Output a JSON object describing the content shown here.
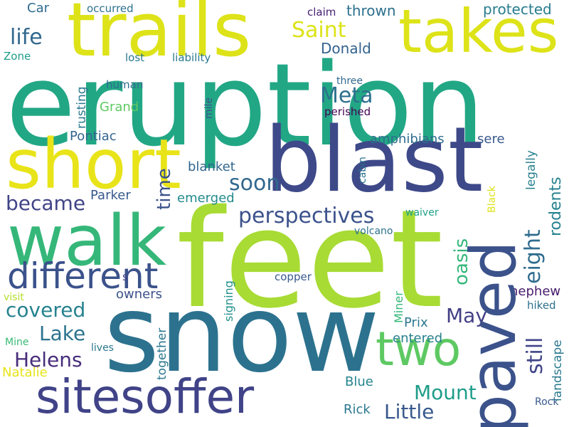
{
  "words": {
    "eruption": "eruption",
    "feet": "feet",
    "snow": "snow",
    "blast": "blast",
    "trails": "trails",
    "takes": "takes",
    "short": "short",
    "walk": "walk",
    "paved": "paved",
    "sitesoffer": "sitesoffer",
    "two": "two",
    "different": "different",
    "perspectives": "perspectives",
    "became": "became",
    "soon": "soon",
    "meta": "Meta",
    "saint": "Saint",
    "life": "life",
    "covered": "covered",
    "helens": "Helens",
    "lake": "Lake",
    "may": "May",
    "mount": "Mount",
    "little": "Little",
    "eight": "eight",
    "still": "still",
    "oasis": "oasis",
    "rodents": "rodents",
    "time": "time",
    "thrown": "thrown",
    "protected": "protected",
    "donald": "Donald",
    "car": "Car",
    "occurred": "occurred",
    "claim": "claim",
    "zone": "Zone",
    "lost": "lost",
    "liability": "liability",
    "human": "human",
    "grand": "Grand",
    "three": "three",
    "perished": "perished",
    "pontiac": "Pontiac",
    "amphibians": "amphibians",
    "sere": "sere",
    "blanket": "blanket",
    "parker": "Parker",
    "emerged": "emerged",
    "waiver": "waiver",
    "volcano": "volcano",
    "s": "s",
    "copper": "copper",
    "owners": "owners",
    "nephew": "nephew",
    "visit": "visit",
    "hiked": "hiked",
    "prix": "Prix",
    "entered": "entered",
    "mine": "Mine",
    "lives": "lives",
    "natalie": "Natalie",
    "blue": "Blue",
    "rock": "Rock",
    "rick": "Rick",
    "landscape": "landscape",
    "legally": "legally",
    "rusting": "rusting",
    "together": "together",
    "signing": "signing",
    "miner": "Miner",
    "cabin": "cabin",
    "black": "Black",
    "mile": "mile"
  }
}
